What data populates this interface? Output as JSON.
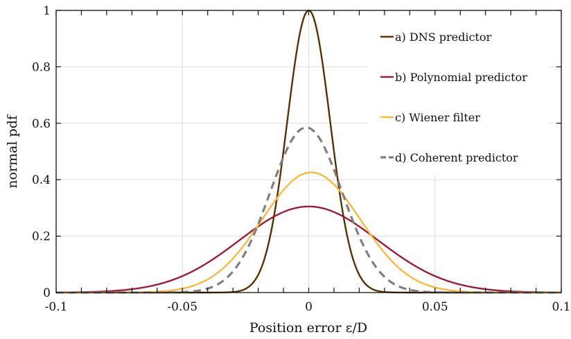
{
  "chart_data": {
    "type": "line",
    "xlabel": "Position error ε/D",
    "ylabel": "normal pdf",
    "xlim": [
      -0.1,
      0.1
    ],
    "ylim": [
      0,
      1
    ],
    "x_ticks": [
      -0.1,
      -0.05,
      0,
      0.05,
      0.1
    ],
    "x_tick_labels": [
      "-0.1",
      "-0.05",
      "0",
      "0.05",
      "0.1"
    ],
    "y_ticks": [
      0,
      0.2,
      0.4,
      0.6,
      0.8,
      1
    ],
    "y_tick_labels": [
      "0",
      "0.2",
      "0.4",
      "0.6",
      "0.8",
      "1"
    ],
    "grid": true,
    "legend_position": "top-right",
    "series": [
      {
        "name": "a) DNS predictor",
        "color": "#5a3000",
        "dash": "solid",
        "mean": 0.0,
        "std": 0.0085,
        "peak": 1.0
      },
      {
        "name": "b) Polynomial predictor",
        "color": "#9b1b3a",
        "dash": "solid",
        "mean": 0.0,
        "std": 0.0275,
        "peak": 0.305
      },
      {
        "name": "c) Wiener filter",
        "color": "#fbb93a",
        "dash": "solid",
        "mean": 0.001,
        "std": 0.0195,
        "peak": 0.426
      },
      {
        "name": "d) Coherent predictor",
        "color": "#7f7f7f",
        "dash": "dashed",
        "mean": -0.001,
        "std": 0.0143,
        "peak": 0.585
      }
    ]
  }
}
